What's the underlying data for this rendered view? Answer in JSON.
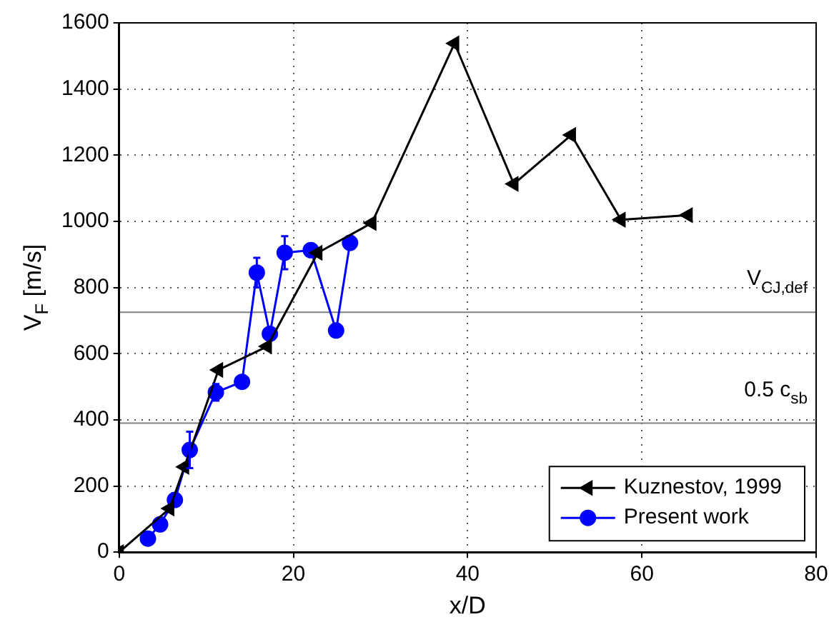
{
  "chart_data": {
    "type": "line",
    "xlabel": "x/D",
    "ylabel": "V$_{F}$ [m/s]",
    "xlim": [
      0,
      80
    ],
    "xticks": [
      0,
      20,
      40,
      60,
      80
    ],
    "ylim": [
      0,
      1600
    ],
    "yticks": [
      0,
      200,
      400,
      600,
      800,
      1000,
      1200,
      1400,
      1600
    ],
    "grid": true,
    "legend": "bottom right",
    "line_style": "solid",
    "ref_lines": [
      {
        "axis": "y",
        "value": 725,
        "label": "V$_{CJ,def}$",
        "color": "#808080"
      },
      {
        "axis": "y",
        "value": 390,
        "label": "0.5 c$_{sb}$",
        "color": "#808080"
      }
    ],
    "series": [
      {
        "name": "Kuznestov, 1999",
        "color": "#000000",
        "marker": "triangle",
        "x": [
          0,
          5.8,
          7.5,
          11.4,
          17.0,
          22.8,
          29.0,
          38.5,
          45.3,
          51.9,
          57.6,
          65.3
        ],
        "values": [
          0,
          132,
          258,
          551,
          622,
          905,
          995,
          1538,
          1113,
          1261,
          1005,
          1019
        ]
      },
      {
        "name": "Present work",
        "color": "#0000ff",
        "marker": "circle",
        "x": [
          3.3,
          4.7,
          6.4,
          8.1,
          11.1,
          14.1,
          15.8,
          17.3,
          19.0,
          22.0,
          24.9,
          26.5
        ],
        "values": [
          41,
          84,
          158,
          309,
          483,
          515,
          845,
          660,
          905,
          913,
          670,
          935
        ],
        "errors": [
          null,
          null,
          null,
          55,
          25,
          null,
          45,
          null,
          50,
          null,
          null,
          null
        ]
      }
    ]
  }
}
